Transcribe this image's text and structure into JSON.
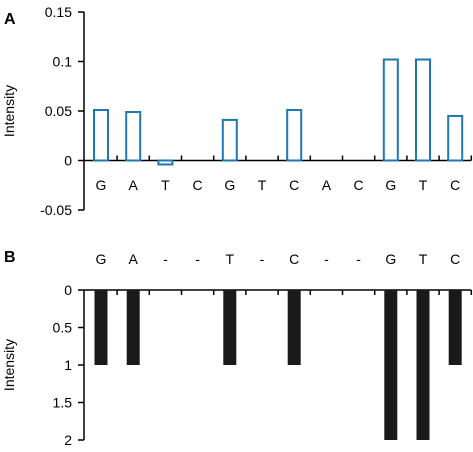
{
  "chart_data": [
    {
      "type": "bar",
      "panel_label": "A",
      "categories": [
        "G",
        "A",
        "T",
        "C",
        "G",
        "T",
        "C",
        "A",
        "C",
        "G",
        "T",
        "C"
      ],
      "values": [
        0.051,
        0.049,
        -0.004,
        0.0,
        0.041,
        0.0,
        0.051,
        0.0,
        0.0,
        0.102,
        0.102,
        0.045
      ],
      "ylabel": "Intensity",
      "ylim": [
        -0.05,
        0.15
      ],
      "yticks": [
        "0.15",
        "0.1",
        "0.05",
        "0",
        "-0.05"
      ],
      "bar_style": "outline",
      "bar_color": "#1f77b4",
      "grid": false
    },
    {
      "type": "bar",
      "panel_label": "B",
      "categories": [
        "G",
        "A",
        "-",
        "-",
        "T",
        "-",
        "C",
        "-",
        "-",
        "G",
        "T",
        "C"
      ],
      "values": [
        1,
        1,
        0,
        0,
        1,
        0,
        1,
        0,
        0,
        2,
        2,
        1
      ],
      "ylabel": "Intensity",
      "ylim": [
        0,
        2
      ],
      "y_inverted": true,
      "yticks": [
        "0",
        "0.5",
        "1",
        "1.5",
        "2"
      ],
      "bar_style": "filled",
      "bar_color": "#1a1a1a",
      "grid": false
    }
  ]
}
